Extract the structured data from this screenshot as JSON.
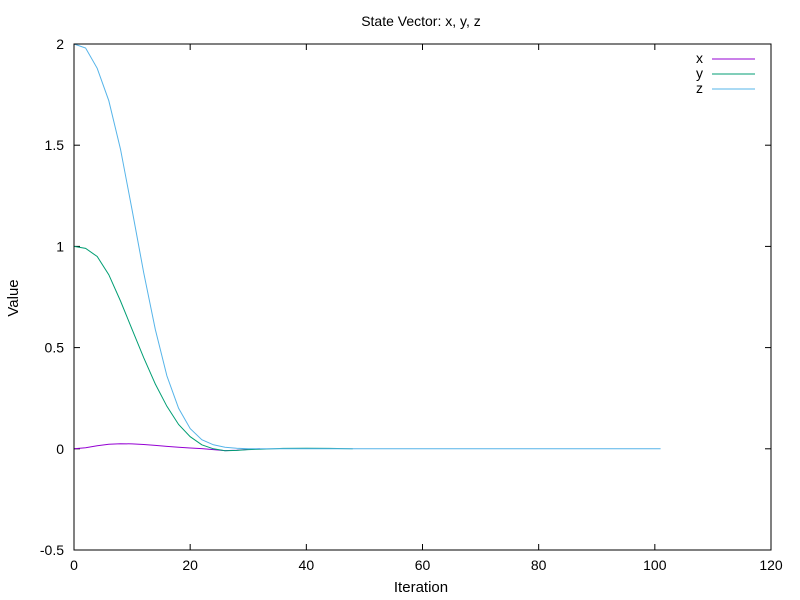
{
  "chart_data": {
    "type": "line",
    "title": "State Vector: x, y, z",
    "xlabel": "Iteration",
    "ylabel": "Value",
    "xlim": [
      0,
      120
    ],
    "ylim": [
      -0.5,
      2
    ],
    "xticks": [
      0,
      20,
      40,
      60,
      80,
      100,
      120
    ],
    "yticks": [
      -0.5,
      0,
      0.5,
      1,
      1.5,
      2
    ],
    "xtick_labels": [
      "0",
      "20",
      "40",
      "60",
      "80",
      "100",
      "120"
    ],
    "ytick_labels": [
      "-0.5",
      "0",
      "0.5",
      "1",
      "1.5",
      "2"
    ],
    "grid": false,
    "legend_position": "top-right",
    "series": [
      {
        "name": "x",
        "color": "#9400d3",
        "x": [
          0,
          2,
          4,
          6,
          8,
          10,
          12,
          14,
          16,
          18,
          20,
          22,
          24,
          26,
          28,
          30,
          32
        ],
        "values": [
          0,
          0.005,
          0.015,
          0.022,
          0.025,
          0.024,
          0.021,
          0.017,
          0.012,
          0.008,
          0.004,
          0.001,
          -0.004,
          -0.009,
          -0.007,
          -0.003,
          0
        ]
      },
      {
        "name": "y",
        "color": "#009e73",
        "x": [
          0,
          2,
          4,
          6,
          8,
          10,
          12,
          14,
          16,
          18,
          20,
          22,
          24,
          26,
          28,
          30,
          32,
          36,
          40,
          44,
          48
        ],
        "values": [
          1.0,
          0.99,
          0.95,
          0.86,
          0.73,
          0.59,
          0.45,
          0.32,
          0.21,
          0.12,
          0.06,
          0.02,
          0.0,
          -0.01,
          -0.008,
          -0.004,
          -0.002,
          0.002,
          0.003,
          0.002,
          0.0
        ]
      },
      {
        "name": "z",
        "color": "#56b4e9",
        "x": [
          0,
          2,
          4,
          6,
          8,
          10,
          12,
          14,
          16,
          18,
          20,
          22,
          24,
          26,
          28,
          30,
          32,
          40,
          60,
          80,
          101
        ],
        "values": [
          2.0,
          1.98,
          1.88,
          1.72,
          1.48,
          1.18,
          0.87,
          0.59,
          0.36,
          0.2,
          0.1,
          0.045,
          0.02,
          0.008,
          0.003,
          0.0,
          0.0,
          0.0,
          0.0,
          0.0,
          0.0
        ]
      }
    ]
  }
}
